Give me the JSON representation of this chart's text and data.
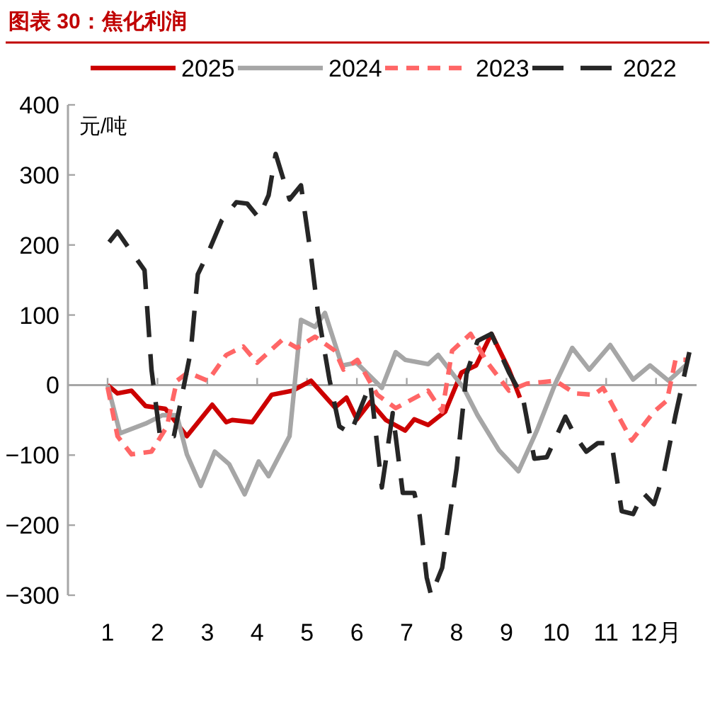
{
  "chart_data": {
    "type": "line",
    "title": "图表 30：焦化利润",
    "ylabel": "元/吨",
    "xlim": [
      1,
      12.7
    ],
    "xticks": [
      1,
      2,
      3,
      4,
      5,
      6,
      7,
      8,
      9,
      10,
      11,
      {
        "value": 12,
        "label": "12月"
      }
    ],
    "ylim": [
      -300,
      400
    ],
    "yticks": [
      -300,
      -200,
      -100,
      0,
      100,
      200,
      300,
      400
    ],
    "legend": "top",
    "grid": false,
    "ref_lines": [
      {
        "axis": "y",
        "value": 0,
        "color": "#a6a6a6"
      }
    ],
    "series": [
      {
        "name": "2025",
        "color": "#cc0000",
        "line_style": "solid",
        "x": [
          1,
          1.2,
          1.48,
          1.76,
          2.16,
          2.59,
          3.1,
          3.38,
          3.5,
          3.9,
          4.29,
          4.71,
          5.08,
          5.56,
          5.79,
          6.0,
          6.27,
          6.58,
          6.97,
          7.15,
          7.43,
          7.77,
          8.1,
          8.39,
          8.7,
          9.05,
          9.27
        ],
        "values": [
          0,
          -12,
          -8,
          -30,
          -34,
          -73,
          -28,
          -53,
          -50,
          -53,
          -14,
          -8,
          6,
          -32,
          -18,
          -49,
          -24,
          -50,
          -65,
          -49,
          -57,
          -38,
          18,
          28,
          73,
          22,
          -18
        ]
      },
      {
        "name": "2024",
        "color": "#a6a6a6",
        "line_style": "solid",
        "x": [
          1,
          1.25,
          1.76,
          2.1,
          2.39,
          2.59,
          2.87,
          3.15,
          3.44,
          3.75,
          4.03,
          4.23,
          4.65,
          4.88,
          5.16,
          5.36,
          5.7,
          5.99,
          6.5,
          6.78,
          6.97,
          7.43,
          7.63,
          8.14,
          8.42,
          8.85,
          9.24,
          9.61,
          9.98,
          10.32,
          10.66,
          11.08,
          11.54,
          11.88,
          12.25,
          12.59
        ],
        "values": [
          0,
          -69,
          -55,
          -43,
          -43,
          -99,
          -144,
          -95,
          -113,
          -156,
          -109,
          -130,
          -73,
          93,
          83,
          103,
          28,
          32,
          -4,
          47,
          36,
          30,
          43,
          -4,
          -43,
          -93,
          -123,
          -65,
          2,
          53,
          22,
          57,
          8,
          28,
          6,
          28
        ]
      },
      {
        "name": "2023",
        "color": "#ff6666",
        "line_style": "dashed",
        "x": [
          1,
          1.2,
          1.48,
          1.88,
          2.19,
          2.39,
          2.61,
          3.01,
          3.38,
          3.72,
          4.0,
          4.51,
          4.8,
          5.16,
          5.56,
          5.73,
          6.01,
          6.41,
          6.78,
          7.43,
          7.71,
          7.91,
          8.28,
          8.62,
          9.05,
          9.41,
          9.98,
          10.38,
          10.75,
          10.94,
          11.51,
          11.96,
          12.22,
          12.39,
          12.64
        ],
        "values": [
          -3,
          -73,
          -99,
          -95,
          -59,
          6,
          18,
          6,
          43,
          55,
          32,
          65,
          53,
          69,
          49,
          22,
          36,
          -14,
          -33,
          -8,
          -38,
          49,
          73,
          32,
          -8,
          2,
          6,
          -12,
          -14,
          -4,
          -79,
          -38,
          -22,
          36,
          36
        ]
      },
      {
        "name": "2022",
        "color": "#262626",
        "line_style": "dashed",
        "x": [
          1.03,
          1.2,
          1.48,
          1.74,
          1.88,
          2.05,
          2.33,
          2.67,
          2.81,
          3.01,
          3.29,
          3.58,
          3.8,
          4.03,
          4.23,
          4.37,
          4.65,
          4.88,
          5.08,
          5.22,
          5.45,
          5.65,
          5.87,
          6.27,
          6.5,
          6.72,
          6.92,
          7.15,
          7.26,
          7.4,
          7.49,
          7.71,
          8.0,
          8.2,
          8.42,
          8.7,
          9.05,
          9.33,
          9.56,
          9.81,
          10.18,
          10.38,
          10.6,
          10.83,
          11.11,
          11.31,
          11.54,
          11.74,
          11.96,
          12.16,
          12.39,
          12.67
        ],
        "values": [
          204,
          219,
          190,
          164,
          22,
          -73,
          -73,
          49,
          158,
          188,
          235,
          261,
          259,
          239,
          271,
          330,
          265,
          285,
          184,
          103,
          8,
          -59,
          -69,
          2,
          -146,
          -40,
          -154,
          -154,
          -186,
          -275,
          -300,
          -261,
          -119,
          16,
          63,
          73,
          18,
          -18,
          -105,
          -103,
          -45,
          -73,
          -95,
          -83,
          -83,
          -180,
          -184,
          -154,
          -170,
          -125,
          -43,
          47
        ]
      }
    ]
  }
}
